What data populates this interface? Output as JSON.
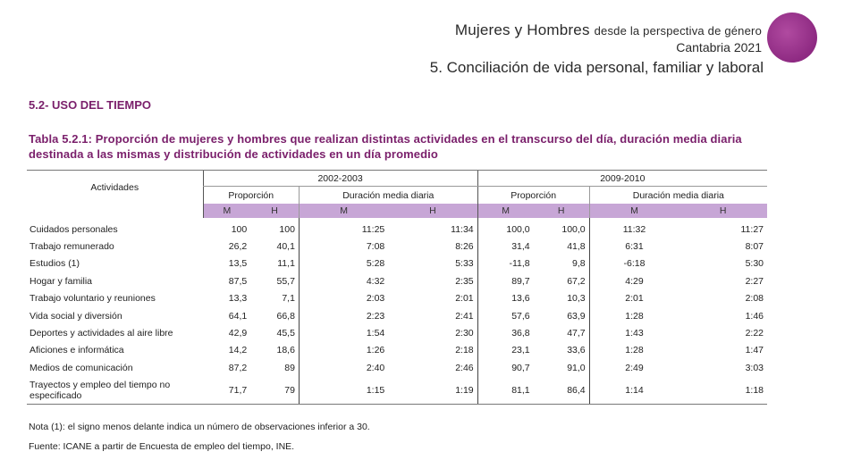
{
  "header": {
    "line1_main": "Mujeres y Hombres",
    "line1_small": "desde la perspectiva de género",
    "line2": "Cantabria 2021",
    "line3": "5. Conciliación de vida personal, familiar y laboral"
  },
  "section_title": "5.2- USO DEL TIEMPO",
  "table_caption": "Tabla 5.2.1: Proporción de mujeres y hombres que realizan distintas actividades en el transcurso del día, duración media diaria destinada a las mismas y distribución de actividades en un día promedio",
  "table": {
    "col_activity": "Actividades",
    "periods": [
      "2002-2003",
      "2009-2010"
    ],
    "groups": [
      "Proporción",
      "Duración media diaria",
      "Proporción",
      "Duración media diaria"
    ],
    "sex": [
      "M",
      "H",
      "M",
      "H",
      "M",
      "H",
      "M",
      "H"
    ],
    "rows": [
      {
        "label": "Cuidados personales",
        "v": [
          "100",
          "100",
          "11:25",
          "11:34",
          "100,0",
          "100,0",
          "11:32",
          "11:27"
        ]
      },
      {
        "label": "Trabajo remunerado",
        "v": [
          "26,2",
          "40,1",
          "7:08",
          "8:26",
          "31,4",
          "41,8",
          "6:31",
          "8:07"
        ]
      },
      {
        "label": "Estudios (1)",
        "v": [
          "13,5",
          "11,1",
          "5:28",
          "5:33",
          "-11,8",
          "9,8",
          "-6:18",
          "5:30"
        ]
      },
      {
        "label": "Hogar y familia",
        "v": [
          "87,5",
          "55,7",
          "4:32",
          "2:35",
          "89,7",
          "67,2",
          "4:29",
          "2:27"
        ]
      },
      {
        "label": "Trabajo voluntario y reuniones",
        "v": [
          "13,3",
          "7,1",
          "2:03",
          "2:01",
          "13,6",
          "10,3",
          "2:01",
          "2:08"
        ]
      },
      {
        "label": "Vida social y diversión",
        "v": [
          "64,1",
          "66,8",
          "2:23",
          "2:41",
          "57,6",
          "63,9",
          "1:28",
          "1:46"
        ]
      },
      {
        "label": "Deportes y actividades al aire libre",
        "v": [
          "42,9",
          "45,5",
          "1:54",
          "2:30",
          "36,8",
          "47,7",
          "1:43",
          "2:22"
        ]
      },
      {
        "label": "Aficiones e informática",
        "v": [
          "14,2",
          "18,6",
          "1:26",
          "2:18",
          "23,1",
          "33,6",
          "1:28",
          "1:47"
        ]
      },
      {
        "label": "Medios de comunicación",
        "v": [
          "87,2",
          "89",
          "2:40",
          "2:46",
          "90,7",
          "91,0",
          "2:49",
          "3:03"
        ]
      },
      {
        "label": "Trayectos y empleo del tiempo no especificado",
        "v": [
          "71,7",
          "79",
          "1:15",
          "1:19",
          "81,1",
          "86,4",
          "1:14",
          "1:18"
        ]
      }
    ]
  },
  "note": "Nota (1): el signo menos delante indica un número de observaciones inferior a 30.",
  "source": "Fuente: ICANE a partir de Encuesta de empleo del tiempo, INE."
}
